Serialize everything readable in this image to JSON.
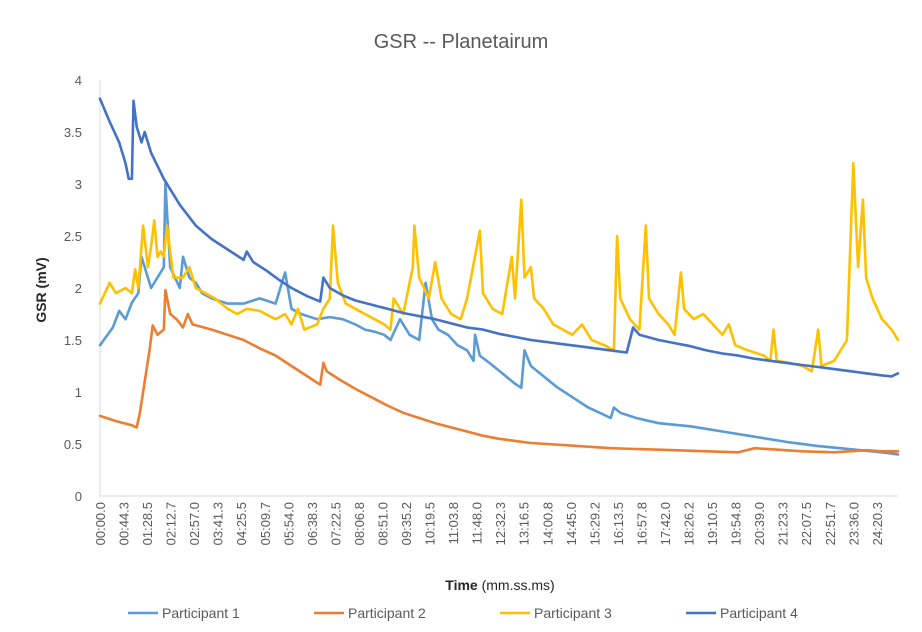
{
  "chart_data": {
    "type": "line",
    "title": "GSR -- Planetairum",
    "xlabel_bold": "Time",
    "xlabel_rest": " (mm.ss.ms)",
    "ylabel": "GSR (mV)",
    "ylim": [
      0,
      4
    ],
    "yticks": [
      "0",
      "0.5",
      "1",
      "1.5",
      "2",
      "2.5",
      "3",
      "3.5",
      "4"
    ],
    "x_ticks": [
      "00:00.0",
      "00:44.3",
      "01:28.5",
      "02:12.7",
      "02:57.0",
      "03:41.3",
      "04:25.5",
      "05:09.7",
      "05:54.0",
      "06:38.3",
      "07:22.5",
      "08:06.8",
      "08:51.0",
      "09:35.2",
      "10:19.5",
      "11:03.8",
      "11:48.0",
      "12:32.3",
      "13:16.5",
      "14:00.8",
      "14:45.0",
      "15:29.2",
      "16:13.5",
      "16:57.8",
      "17:42.0",
      "18:26.2",
      "19:10.5",
      "19:54.8",
      "20:39.0",
      "21:23.3",
      "22:07.5",
      "22:51.7",
      "23:36.0",
      "24:20.3"
    ],
    "grid": false,
    "legend_position": "bottom",
    "series": [
      {
        "name": "Participant 1",
        "color": "#5B9BD5",
        "points": [
          [
            0,
            1.45
          ],
          [
            0.4,
            1.62
          ],
          [
            0.6,
            1.78
          ],
          [
            0.8,
            1.7
          ],
          [
            1,
            1.86
          ],
          [
            1.2,
            1.95
          ],
          [
            1.3,
            2.3
          ],
          [
            1.5,
            2.1
          ],
          [
            1.6,
            2.0
          ],
          [
            2.0,
            2.2
          ],
          [
            2.05,
            3.0
          ],
          [
            2.2,
            2.2
          ],
          [
            2.5,
            2.0
          ],
          [
            2.6,
            2.3
          ],
          [
            2.8,
            2.1
          ],
          [
            3.0,
            2.05
          ],
          [
            3.2,
            1.95
          ],
          [
            3.5,
            1.9
          ],
          [
            4.0,
            1.85
          ],
          [
            4.5,
            1.85
          ],
          [
            5.0,
            1.9
          ],
          [
            5.5,
            1.85
          ],
          [
            5.8,
            2.15
          ],
          [
            6.0,
            1.8
          ],
          [
            6.3,
            1.75
          ],
          [
            6.8,
            1.7
          ],
          [
            7.2,
            1.72
          ],
          [
            7.6,
            1.7
          ],
          [
            8.0,
            1.65
          ],
          [
            8.3,
            1.6
          ],
          [
            8.6,
            1.58
          ],
          [
            8.9,
            1.55
          ],
          [
            9.1,
            1.5
          ],
          [
            9.4,
            1.7
          ],
          [
            9.7,
            1.55
          ],
          [
            10.0,
            1.5
          ],
          [
            10.2,
            2.05
          ],
          [
            10.4,
            1.7
          ],
          [
            10.6,
            1.6
          ],
          [
            10.9,
            1.55
          ],
          [
            11.2,
            1.45
          ],
          [
            11.5,
            1.4
          ],
          [
            11.7,
            1.3
          ],
          [
            11.75,
            1.55
          ],
          [
            11.9,
            1.35
          ],
          [
            12.2,
            1.28
          ],
          [
            12.6,
            1.18
          ],
          [
            13.0,
            1.08
          ],
          [
            13.2,
            1.04
          ],
          [
            13.3,
            1.4
          ],
          [
            13.5,
            1.25
          ],
          [
            13.9,
            1.15
          ],
          [
            14.3,
            1.05
          ],
          [
            14.8,
            0.95
          ],
          [
            15.3,
            0.85
          ],
          [
            15.8,
            0.78
          ],
          [
            16.0,
            0.75
          ],
          [
            16.1,
            0.85
          ],
          [
            16.3,
            0.8
          ],
          [
            16.8,
            0.75
          ],
          [
            17.5,
            0.7
          ],
          [
            18.5,
            0.67
          ],
          [
            19.5,
            0.62
          ],
          [
            20.5,
            0.57
          ],
          [
            21.5,
            0.52
          ],
          [
            22.5,
            0.48
          ],
          [
            23.5,
            0.45
          ],
          [
            24.5,
            0.42
          ],
          [
            25,
            0.4
          ]
        ]
      },
      {
        "name": "Participant 2",
        "color": "#ED7D31",
        "points": [
          [
            0,
            0.77
          ],
          [
            0.5,
            0.72
          ],
          [
            1.0,
            0.68
          ],
          [
            1.15,
            0.66
          ],
          [
            1.25,
            0.8
          ],
          [
            1.4,
            1.1
          ],
          [
            1.55,
            1.4
          ],
          [
            1.65,
            1.64
          ],
          [
            1.8,
            1.55
          ],
          [
            2.0,
            1.6
          ],
          [
            2.05,
            1.98
          ],
          [
            2.2,
            1.75
          ],
          [
            2.4,
            1.7
          ],
          [
            2.6,
            1.62
          ],
          [
            2.75,
            1.75
          ],
          [
            2.9,
            1.65
          ],
          [
            3.5,
            1.6
          ],
          [
            4.0,
            1.55
          ],
          [
            4.5,
            1.5
          ],
          [
            5.0,
            1.42
          ],
          [
            5.5,
            1.35
          ],
          [
            6.0,
            1.25
          ],
          [
            6.5,
            1.15
          ],
          [
            6.9,
            1.07
          ],
          [
            7.0,
            1.28
          ],
          [
            7.1,
            1.2
          ],
          [
            7.5,
            1.12
          ],
          [
            8.0,
            1.03
          ],
          [
            8.5,
            0.95
          ],
          [
            9.0,
            0.87
          ],
          [
            9.5,
            0.8
          ],
          [
            10.0,
            0.75
          ],
          [
            10.5,
            0.7
          ],
          [
            11.0,
            0.66
          ],
          [
            11.5,
            0.62
          ],
          [
            12.0,
            0.58
          ],
          [
            12.5,
            0.55
          ],
          [
            13.0,
            0.53
          ],
          [
            13.5,
            0.51
          ],
          [
            14.0,
            0.5
          ],
          [
            15.0,
            0.48
          ],
          [
            16.0,
            0.46
          ],
          [
            17.0,
            0.45
          ],
          [
            18.0,
            0.44
          ],
          [
            19.0,
            0.43
          ],
          [
            20.0,
            0.42
          ],
          [
            20.5,
            0.46
          ],
          [
            21.0,
            0.45
          ],
          [
            22.0,
            0.43
          ],
          [
            23.0,
            0.42
          ],
          [
            24.0,
            0.44
          ],
          [
            24.5,
            0.43
          ],
          [
            25,
            0.43
          ]
        ]
      },
      {
        "name": "Participant 3",
        "color": "#FFC000",
        "points": [
          [
            0,
            1.85
          ],
          [
            0.3,
            2.05
          ],
          [
            0.5,
            1.95
          ],
          [
            0.8,
            2.0
          ],
          [
            1.0,
            1.95
          ],
          [
            1.1,
            2.18
          ],
          [
            1.2,
            2.0
          ],
          [
            1.35,
            2.6
          ],
          [
            1.5,
            2.2
          ],
          [
            1.6,
            2.4
          ],
          [
            1.7,
            2.65
          ],
          [
            1.8,
            2.3
          ],
          [
            1.9,
            2.35
          ],
          [
            2.0,
            2.3
          ],
          [
            2.1,
            2.6
          ],
          [
            2.3,
            2.1
          ],
          [
            2.6,
            2.1
          ],
          [
            2.8,
            2.2
          ],
          [
            3.0,
            2.0
          ],
          [
            3.3,
            1.95
          ],
          [
            3.6,
            1.9
          ],
          [
            4.0,
            1.8
          ],
          [
            4.3,
            1.75
          ],
          [
            4.6,
            1.8
          ],
          [
            5.0,
            1.78
          ],
          [
            5.5,
            1.7
          ],
          [
            5.8,
            1.75
          ],
          [
            6.0,
            1.65
          ],
          [
            6.2,
            1.8
          ],
          [
            6.4,
            1.6
          ],
          [
            6.8,
            1.65
          ],
          [
            7.0,
            1.8
          ],
          [
            7.2,
            1.9
          ],
          [
            7.3,
            2.6
          ],
          [
            7.45,
            2.05
          ],
          [
            7.7,
            1.85
          ],
          [
            8.0,
            1.8
          ],
          [
            8.3,
            1.75
          ],
          [
            8.6,
            1.7
          ],
          [
            8.9,
            1.65
          ],
          [
            9.1,
            1.6
          ],
          [
            9.2,
            1.9
          ],
          [
            9.5,
            1.75
          ],
          [
            9.8,
            2.2
          ],
          [
            9.85,
            2.6
          ],
          [
            10.0,
            2.1
          ],
          [
            10.3,
            1.9
          ],
          [
            10.5,
            2.25
          ],
          [
            10.7,
            1.9
          ],
          [
            11.0,
            1.75
          ],
          [
            11.3,
            1.7
          ],
          [
            11.5,
            1.9
          ],
          [
            11.9,
            2.55
          ],
          [
            12.0,
            1.95
          ],
          [
            12.3,
            1.8
          ],
          [
            12.6,
            1.75
          ],
          [
            12.9,
            2.3
          ],
          [
            13.0,
            1.9
          ],
          [
            13.2,
            2.85
          ],
          [
            13.3,
            2.1
          ],
          [
            13.5,
            2.2
          ],
          [
            13.6,
            1.9
          ],
          [
            13.9,
            1.8
          ],
          [
            14.2,
            1.65
          ],
          [
            14.5,
            1.6
          ],
          [
            14.8,
            1.55
          ],
          [
            15.1,
            1.65
          ],
          [
            15.4,
            1.5
          ],
          [
            15.8,
            1.45
          ],
          [
            16.1,
            1.4
          ],
          [
            16.2,
            2.5
          ],
          [
            16.3,
            1.9
          ],
          [
            16.6,
            1.7
          ],
          [
            16.9,
            1.6
          ],
          [
            17.1,
            2.6
          ],
          [
            17.2,
            1.9
          ],
          [
            17.5,
            1.75
          ],
          [
            17.8,
            1.65
          ],
          [
            18.0,
            1.55
          ],
          [
            18.2,
            2.15
          ],
          [
            18.3,
            1.8
          ],
          [
            18.6,
            1.7
          ],
          [
            18.9,
            1.75
          ],
          [
            19.2,
            1.65
          ],
          [
            19.5,
            1.55
          ],
          [
            19.7,
            1.65
          ],
          [
            19.9,
            1.45
          ],
          [
            20.3,
            1.4
          ],
          [
            20.8,
            1.35
          ],
          [
            21.0,
            1.3
          ],
          [
            21.1,
            1.6
          ],
          [
            21.2,
            1.3
          ],
          [
            21.6,
            1.28
          ],
          [
            22.0,
            1.25
          ],
          [
            22.3,
            1.2
          ],
          [
            22.5,
            1.6
          ],
          [
            22.6,
            1.25
          ],
          [
            23.0,
            1.3
          ],
          [
            23.4,
            1.5
          ],
          [
            23.6,
            3.2
          ],
          [
            23.75,
            2.2
          ],
          [
            23.9,
            2.85
          ],
          [
            24.0,
            2.1
          ],
          [
            24.2,
            1.9
          ],
          [
            24.5,
            1.7
          ],
          [
            24.8,
            1.6
          ],
          [
            25,
            1.5
          ]
        ]
      },
      {
        "name": "Participant 4",
        "color": "#4472C4",
        "points": [
          [
            0,
            3.82
          ],
          [
            0.3,
            3.6
          ],
          [
            0.6,
            3.4
          ],
          [
            0.8,
            3.2
          ],
          [
            0.9,
            3.05
          ],
          [
            1.0,
            3.05
          ],
          [
            1.05,
            3.8
          ],
          [
            1.15,
            3.55
          ],
          [
            1.3,
            3.4
          ],
          [
            1.4,
            3.5
          ],
          [
            1.6,
            3.3
          ],
          [
            2.0,
            3.05
          ],
          [
            2.5,
            2.8
          ],
          [
            3.0,
            2.6
          ],
          [
            3.5,
            2.47
          ],
          [
            4.0,
            2.37
          ],
          [
            4.5,
            2.27
          ],
          [
            4.6,
            2.35
          ],
          [
            4.8,
            2.25
          ],
          [
            5.2,
            2.17
          ],
          [
            5.6,
            2.08
          ],
          [
            6.0,
            2.0
          ],
          [
            6.5,
            1.92
          ],
          [
            6.9,
            1.87
          ],
          [
            7.0,
            2.1
          ],
          [
            7.2,
            2.0
          ],
          [
            7.6,
            1.93
          ],
          [
            8.0,
            1.88
          ],
          [
            8.5,
            1.84
          ],
          [
            9.0,
            1.8
          ],
          [
            9.5,
            1.76
          ],
          [
            10.0,
            1.73
          ],
          [
            10.5,
            1.7
          ],
          [
            11.0,
            1.66
          ],
          [
            11.5,
            1.62
          ],
          [
            12.0,
            1.6
          ],
          [
            12.5,
            1.56
          ],
          [
            13.0,
            1.53
          ],
          [
            13.5,
            1.5
          ],
          [
            14.0,
            1.48
          ],
          [
            14.5,
            1.46
          ],
          [
            15.0,
            1.44
          ],
          [
            15.5,
            1.42
          ],
          [
            16.0,
            1.4
          ],
          [
            16.5,
            1.38
          ],
          [
            16.7,
            1.62
          ],
          [
            16.9,
            1.55
          ],
          [
            17.5,
            1.5
          ],
          [
            18.0,
            1.47
          ],
          [
            18.5,
            1.44
          ],
          [
            19.0,
            1.4
          ],
          [
            19.5,
            1.37
          ],
          [
            20.0,
            1.35
          ],
          [
            20.5,
            1.32
          ],
          [
            21.0,
            1.3
          ],
          [
            21.5,
            1.28
          ],
          [
            22.0,
            1.26
          ],
          [
            22.5,
            1.24
          ],
          [
            23.0,
            1.22
          ],
          [
            23.5,
            1.2
          ],
          [
            24.0,
            1.18
          ],
          [
            24.5,
            1.16
          ],
          [
            24.8,
            1.15
          ],
          [
            25,
            1.18
          ]
        ]
      }
    ]
  }
}
